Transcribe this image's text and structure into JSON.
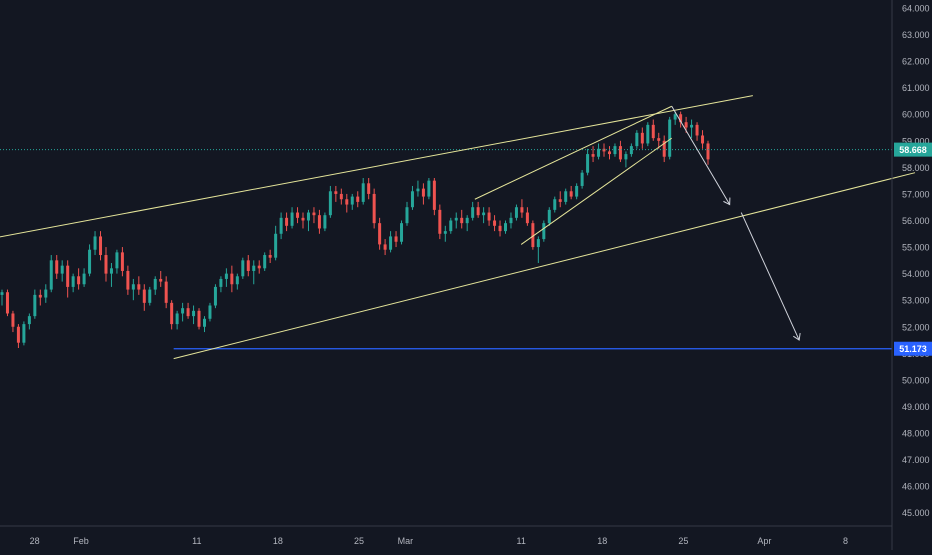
{
  "chart_data": {
    "type": "candlestick",
    "title": "",
    "xlabel": "",
    "ylabel": "",
    "ylim": [
      44.5,
      64.3
    ],
    "y_ticks": [
      "45.000",
      "46.000",
      "47.000",
      "48.000",
      "49.000",
      "50.000",
      "51.000",
      "52.000",
      "53.000",
      "54.000",
      "55.000",
      "56.000",
      "57.000",
      "58.000",
      "59.000",
      "60.000",
      "61.000",
      "62.000",
      "63.000",
      "64.000"
    ],
    "x_tick_labels": [
      "28",
      "Feb",
      "11",
      "18",
      "25",
      "Mar",
      "11",
      "18",
      "25",
      "Apr",
      "8"
    ],
    "x_tick_dates": [
      "2019-01-28",
      "2019-02-01",
      "2019-02-11",
      "2019-02-18",
      "2019-02-25",
      "2019-03-01",
      "2019-03-11",
      "2019-03-18",
      "2019-03-25",
      "2019-04-01",
      "2019-04-08"
    ],
    "current_price": {
      "label": "58.668",
      "value": 58.668,
      "color": "#26a69a"
    },
    "horizontal_level": {
      "label": "51.173",
      "value": 51.173,
      "color": "#2962ff"
    },
    "up_color": "#26a69a",
    "down_color": "#ef5350",
    "grid": false,
    "candles_ohlc": [
      [
        53.2,
        53.4,
        52.8,
        53.3
      ],
      [
        53.3,
        53.4,
        52.4,
        52.5
      ],
      [
        52.5,
        52.6,
        51.8,
        52.0
      ],
      [
        52.0,
        52.1,
        51.2,
        51.4
      ],
      [
        51.4,
        52.2,
        51.3,
        52.1
      ],
      [
        52.1,
        52.5,
        51.9,
        52.4
      ],
      [
        52.4,
        53.4,
        52.3,
        53.2
      ],
      [
        53.2,
        53.4,
        52.8,
        53.1
      ],
      [
        53.1,
        53.6,
        52.9,
        53.4
      ],
      [
        53.4,
        54.7,
        53.3,
        54.5
      ],
      [
        54.5,
        54.7,
        53.8,
        54.0
      ],
      [
        54.0,
        54.5,
        53.7,
        54.3
      ],
      [
        54.3,
        54.5,
        53.1,
        53.5
      ],
      [
        53.5,
        54.0,
        53.3,
        53.9
      ],
      [
        53.9,
        54.2,
        53.4,
        53.6
      ],
      [
        53.6,
        54.2,
        53.5,
        54.0
      ],
      [
        54.0,
        55.1,
        53.9,
        54.9
      ],
      [
        54.9,
        55.6,
        54.7,
        55.4
      ],
      [
        55.4,
        55.6,
        54.5,
        54.7
      ],
      [
        54.7,
        55.0,
        53.7,
        54.0
      ],
      [
        54.0,
        54.4,
        53.5,
        54.2
      ],
      [
        54.2,
        54.9,
        54.0,
        54.8
      ],
      [
        54.8,
        55.0,
        53.9,
        54.1
      ],
      [
        54.1,
        54.3,
        53.2,
        53.4
      ],
      [
        53.4,
        53.8,
        53.0,
        53.6
      ],
      [
        53.6,
        53.9,
        53.2,
        53.4
      ],
      [
        53.4,
        53.6,
        52.6,
        52.9
      ],
      [
        52.9,
        53.5,
        52.8,
        53.4
      ],
      [
        53.4,
        53.9,
        53.2,
        53.8
      ],
      [
        53.8,
        54.1,
        53.5,
        53.7
      ],
      [
        53.7,
        53.9,
        52.7,
        52.9
      ],
      [
        52.9,
        53.0,
        51.9,
        52.1
      ],
      [
        52.1,
        52.6,
        51.9,
        52.5
      ],
      [
        52.5,
        52.9,
        52.2,
        52.7
      ],
      [
        52.7,
        52.9,
        52.3,
        52.4
      ],
      [
        52.4,
        52.8,
        52.1,
        52.6
      ],
      [
        52.6,
        52.7,
        51.9,
        52.0
      ],
      [
        52.0,
        52.4,
        51.8,
        52.3
      ],
      [
        52.3,
        52.9,
        52.2,
        52.8
      ],
      [
        52.8,
        53.6,
        52.7,
        53.5
      ],
      [
        53.5,
        53.9,
        53.3,
        53.8
      ],
      [
        53.8,
        54.2,
        53.5,
        54.0
      ],
      [
        54.0,
        54.3,
        53.3,
        53.6
      ],
      [
        53.6,
        54.0,
        53.4,
        53.9
      ],
      [
        53.9,
        54.6,
        53.8,
        54.5
      ],
      [
        54.5,
        54.7,
        53.9,
        54.1
      ],
      [
        54.1,
        54.5,
        53.6,
        54.3
      ],
      [
        54.3,
        54.5,
        54.0,
        54.2
      ],
      [
        54.2,
        54.8,
        54.1,
        54.7
      ],
      [
        54.7,
        54.9,
        54.4,
        54.6
      ],
      [
        54.6,
        55.8,
        54.5,
        55.5
      ],
      [
        55.5,
        56.3,
        55.3,
        56.1
      ],
      [
        56.1,
        56.3,
        55.6,
        55.8
      ],
      [
        55.8,
        56.5,
        55.7,
        56.3
      ],
      [
        56.3,
        56.5,
        55.9,
        56.1
      ],
      [
        56.1,
        56.3,
        55.7,
        56.0
      ],
      [
        56.0,
        56.4,
        55.6,
        56.3
      ],
      [
        56.3,
        56.5,
        55.9,
        56.2
      ],
      [
        56.2,
        56.4,
        55.5,
        55.7
      ],
      [
        55.7,
        56.3,
        55.6,
        56.2
      ],
      [
        56.2,
        57.3,
        56.1,
        57.1
      ],
      [
        57.1,
        57.3,
        56.7,
        57.0
      ],
      [
        57.0,
        57.2,
        56.6,
        56.8
      ],
      [
        56.8,
        57.0,
        56.3,
        56.6
      ],
      [
        56.6,
        57.0,
        56.4,
        56.9
      ],
      [
        56.9,
        57.1,
        56.5,
        56.7
      ],
      [
        56.7,
        57.6,
        56.6,
        57.4
      ],
      [
        57.4,
        57.6,
        56.8,
        57.0
      ],
      [
        57.0,
        57.2,
        55.7,
        55.9
      ],
      [
        55.9,
        56.1,
        54.9,
        55.1
      ],
      [
        55.1,
        55.3,
        54.7,
        54.9
      ],
      [
        54.9,
        55.6,
        54.8,
        55.4
      ],
      [
        55.4,
        55.6,
        55.0,
        55.2
      ],
      [
        55.2,
        56.0,
        55.1,
        55.9
      ],
      [
        55.9,
        56.7,
        55.8,
        56.5
      ],
      [
        56.5,
        57.3,
        56.4,
        57.1
      ],
      [
        57.1,
        57.5,
        56.9,
        57.2
      ],
      [
        57.2,
        57.4,
        56.6,
        56.9
      ],
      [
        56.9,
        57.6,
        56.8,
        57.5
      ],
      [
        57.5,
        57.6,
        56.2,
        56.4
      ],
      [
        56.4,
        56.6,
        55.3,
        55.5
      ],
      [
        55.5,
        55.8,
        55.2,
        55.6
      ],
      [
        55.6,
        56.1,
        55.5,
        56.0
      ],
      [
        56.0,
        56.3,
        55.7,
        56.1
      ],
      [
        56.1,
        56.4,
        55.7,
        55.9
      ],
      [
        55.9,
        56.2,
        55.6,
        56.1
      ],
      [
        56.1,
        56.7,
        56.0,
        56.5
      ],
      [
        56.5,
        56.7,
        56.1,
        56.2
      ],
      [
        56.2,
        56.5,
        55.9,
        56.3
      ],
      [
        56.3,
        56.5,
        55.8,
        56.0
      ],
      [
        56.0,
        56.2,
        55.6,
        55.8
      ],
      [
        55.8,
        56.0,
        55.4,
        55.6
      ],
      [
        55.6,
        56.0,
        55.5,
        55.9
      ],
      [
        55.9,
        56.3,
        55.7,
        56.1
      ],
      [
        56.1,
        56.6,
        56.0,
        56.5
      ],
      [
        56.5,
        56.8,
        56.1,
        56.3
      ],
      [
        56.3,
        56.5,
        55.8,
        55.9
      ],
      [
        55.9,
        56.0,
        54.9,
        55.0
      ],
      [
        55.0,
        55.4,
        54.4,
        55.3
      ],
      [
        55.3,
        56.0,
        55.2,
        55.9
      ],
      [
        55.9,
        56.5,
        55.8,
        56.4
      ],
      [
        56.4,
        56.9,
        56.3,
        56.8
      ],
      [
        56.8,
        57.1,
        56.5,
        56.7
      ],
      [
        56.7,
        57.2,
        56.6,
        57.1
      ],
      [
        57.1,
        57.3,
        56.8,
        56.9
      ],
      [
        56.9,
        57.4,
        56.8,
        57.3
      ],
      [
        57.3,
        57.9,
        57.2,
        57.8
      ],
      [
        57.8,
        58.7,
        57.7,
        58.5
      ],
      [
        58.5,
        58.8,
        58.2,
        58.4
      ],
      [
        58.4,
        58.9,
        58.3,
        58.7
      ],
      [
        58.7,
        58.9,
        58.4,
        58.6
      ],
      [
        58.6,
        58.8,
        58.3,
        58.5
      ],
      [
        58.5,
        58.9,
        58.4,
        58.8
      ],
      [
        58.8,
        59.0,
        58.2,
        58.3
      ],
      [
        58.3,
        58.6,
        58.0,
        58.5
      ],
      [
        58.5,
        58.9,
        58.4,
        58.8
      ],
      [
        58.8,
        59.4,
        58.7,
        59.3
      ],
      [
        59.3,
        59.5,
        58.7,
        58.9
      ],
      [
        58.9,
        59.7,
        58.8,
        59.6
      ],
      [
        59.6,
        59.8,
        59.0,
        59.1
      ],
      [
        59.1,
        59.3,
        58.7,
        59.0
      ],
      [
        59.0,
        59.2,
        58.2,
        58.4
      ],
      [
        58.4,
        59.9,
        58.3,
        59.8
      ],
      [
        59.8,
        60.1,
        59.6,
        60.0
      ],
      [
        60.0,
        60.1,
        59.5,
        59.7
      ],
      [
        59.7,
        59.9,
        59.3,
        59.5
      ],
      [
        59.5,
        59.8,
        59.1,
        59.6
      ],
      [
        59.6,
        59.7,
        59.0,
        59.2
      ],
      [
        59.2,
        59.4,
        58.7,
        58.9
      ],
      [
        58.9,
        59.0,
        58.1,
        58.3
      ]
    ],
    "annotations": [
      {
        "kind": "trendline",
        "color": "#e5e59a",
        "points": [
          [
            "2019-01-24",
            55.3
          ],
          [
            "2019-03-31",
            60.7
          ]
        ]
      },
      {
        "kind": "trendline",
        "color": "#e5e59a",
        "points": [
          [
            "2019-02-09",
            50.8
          ],
          [
            "2019-04-14",
            57.8
          ]
        ]
      },
      {
        "kind": "trendline",
        "color": "#e5e59a",
        "points": [
          [
            "2019-03-07",
            56.8
          ],
          [
            "2019-03-24",
            60.3
          ]
        ]
      },
      {
        "kind": "trendline",
        "color": "#e5e59a",
        "points": [
          [
            "2019-03-11",
            55.1
          ],
          [
            "2019-03-24",
            59.1
          ]
        ]
      },
      {
        "kind": "arrow",
        "color": "#d1d4dc",
        "points": [
          [
            "2019-03-24",
            60.3
          ],
          [
            "2019-03-29",
            56.6
          ]
        ]
      },
      {
        "kind": "arrow",
        "color": "#d1d4dc",
        "points": [
          [
            "2019-03-30",
            56.3
          ],
          [
            "2019-04-04",
            51.5
          ]
        ]
      }
    ]
  }
}
